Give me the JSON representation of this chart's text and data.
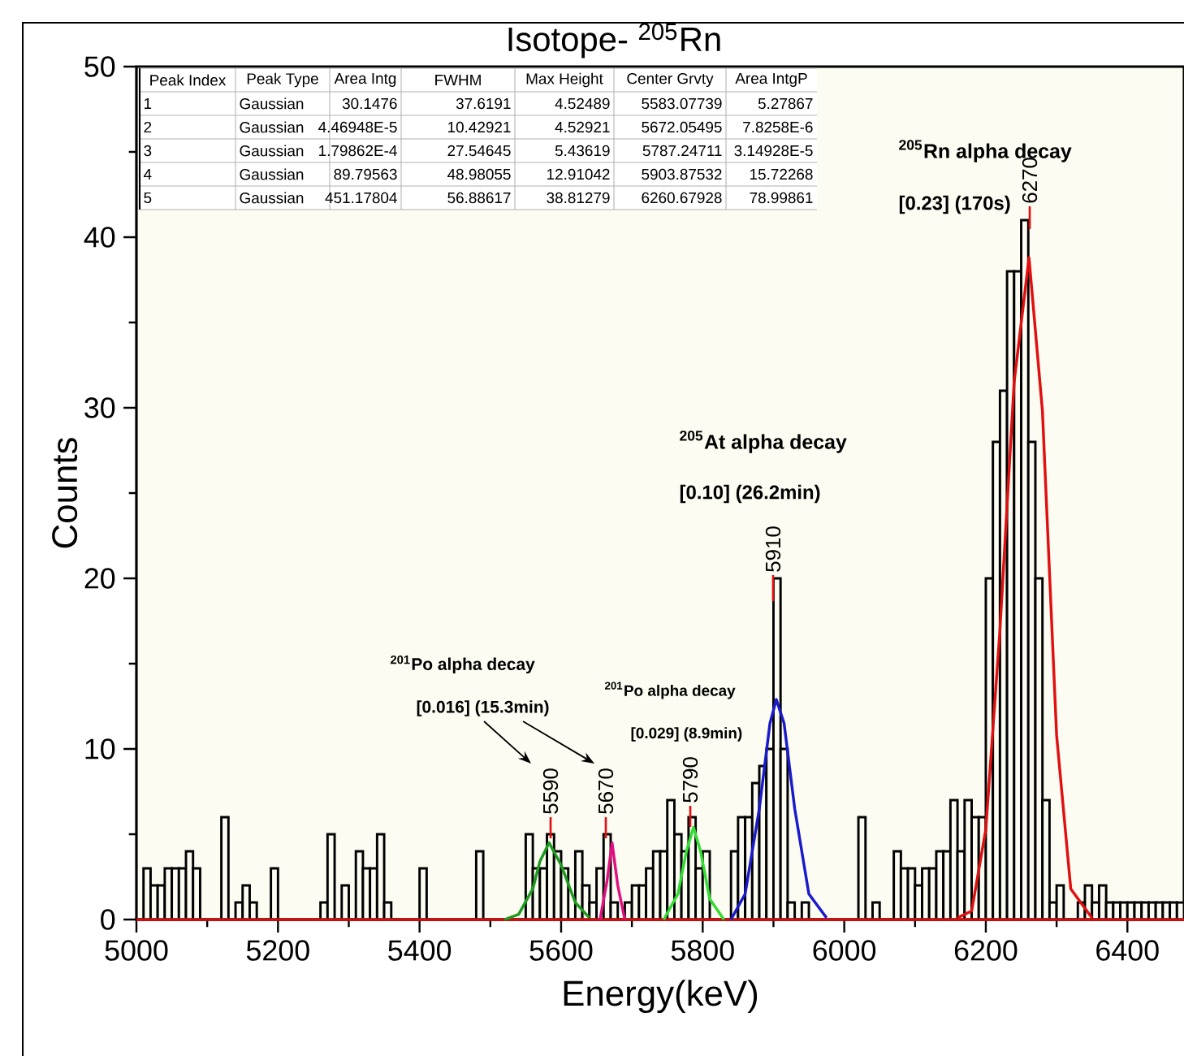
{
  "chart_data": {
    "type": "histogram",
    "title": "Isotope- $^{205}$Rn",
    "xlabel": "Energy(keV)",
    "ylabel": "Counts",
    "color": "#000000",
    "bins": [
      5000,
      5010,
      5020,
      5030,
      5040,
      5050,
      5060,
      5070,
      5080,
      5090,
      5100,
      5110,
      5120,
      5130,
      5140,
      5150,
      5160,
      5170,
      5180,
      5190,
      5200,
      5210,
      5220,
      5230,
      5240,
      5250,
      5260,
      5270,
      5280,
      5290,
      5300,
      5310,
      5320,
      5330,
      5340,
      5350,
      5360,
      5370,
      5380,
      5390,
      5400,
      5410,
      5420,
      5430,
      5440,
      5450,
      5460,
      5470,
      5480,
      5490,
      5500,
      5510,
      5520,
      5530,
      5540,
      5550,
      5560,
      5570,
      5580,
      5590,
      5600,
      5610,
      5620,
      5630,
      5640,
      5650,
      5660,
      5670,
      5680,
      5690,
      5700,
      5710,
      5720,
      5730,
      5740,
      5750,
      5760,
      5770,
      5780,
      5790,
      5800,
      5810,
      5820,
      5830,
      5840,
      5850,
      5860,
      5870,
      5880,
      5890,
      5900,
      5910,
      5920,
      5930,
      5940,
      5950,
      5960,
      5970,
      5980,
      5990,
      6000,
      6010,
      6020,
      6030,
      6040,
      6050,
      6060,
      6070,
      6080,
      6090,
      6100,
      6110,
      6120,
      6130,
      6140,
      6150,
      6160,
      6170,
      6180,
      6190,
      6200,
      6210,
      6220,
      6230,
      6240,
      6250,
      6260,
      6270,
      6280,
      6290,
      6300,
      6310,
      6320,
      6330,
      6340,
      6350,
      6360,
      6370,
      6380,
      6390,
      6400,
      6410,
      6420,
      6430,
      6440,
      6450,
      6460,
      6470,
      6480
    ],
    "values": [
      0,
      3,
      2,
      2,
      3,
      3,
      3,
      4,
      3,
      0,
      0,
      0,
      6,
      0,
      1,
      2,
      1,
      0,
      0,
      3,
      0,
      0,
      0,
      0,
      0,
      0,
      1,
      5,
      0,
      2,
      0,
      4,
      3,
      3,
      5,
      1,
      0,
      0,
      0,
      0,
      3,
      0,
      0,
      0,
      0,
      0,
      0,
      0,
      4,
      0,
      0,
      0,
      0,
      0,
      0,
      5,
      3,
      3,
      5,
      4,
      3,
      0,
      4,
      2,
      1,
      3,
      5,
      1,
      0,
      1,
      2,
      2,
      3,
      4,
      4,
      7,
      5,
      4,
      6,
      3,
      4,
      0,
      0,
      0,
      4,
      6,
      6,
      8,
      9,
      10,
      20,
      10,
      1,
      0,
      1,
      0,
      0,
      0,
      0,
      0,
      0,
      0,
      6,
      0,
      1,
      0,
      0,
      4,
      3,
      3,
      2,
      3,
      3,
      4,
      4,
      7,
      4,
      7,
      6,
      6,
      20,
      28,
      31,
      38,
      38,
      41,
      28,
      20,
      7,
      1,
      2,
      0,
      0,
      1,
      2,
      1,
      2,
      1,
      1,
      1,
      1,
      1,
      1,
      1,
      1,
      1,
      1,
      1
    ],
    "series": [
      {
        "type": "line",
        "color": "#d01010",
        "x": [
          5000,
          6480
        ],
        "values": [
          0,
          0
        ]
      },
      {
        "type": "line",
        "color": "#1e9a1e",
        "x": [
          5520,
          5540,
          5560,
          5570,
          5583,
          5600,
          5620,
          5640
        ],
        "values": [
          0,
          0.3,
          1.8,
          3.4,
          4.5,
          3.2,
          1,
          0.1
        ]
      },
      {
        "type": "line",
        "color": "#e0107f",
        "x": [
          5655,
          5665,
          5672,
          5680,
          5690
        ],
        "values": [
          0,
          2.3,
          4.5,
          2,
          0
        ]
      },
      {
        "type": "line",
        "color": "#33dd33",
        "x": [
          5745,
          5765,
          5777,
          5787,
          5797,
          5810,
          5830
        ],
        "values": [
          0,
          1.5,
          4,
          5.4,
          4,
          1.2,
          0
        ]
      },
      {
        "type": "line",
        "color": "#1a1acc",
        "x": [
          5840,
          5860,
          5880,
          5895,
          5904,
          5915,
          5930,
          5950,
          5975
        ],
        "values": [
          0,
          1.5,
          6.5,
          11.5,
          12.9,
          11.5,
          6.5,
          1.5,
          0.1
        ]
      },
      {
        "type": "line",
        "color": "#e01010",
        "x": [
          6160,
          6180,
          6200,
          6220,
          6240,
          6261,
          6280,
          6300,
          6320,
          6350
        ],
        "values": [
          0.1,
          0.5,
          5.3,
          17,
          31.5,
          38.8,
          29.8,
          10.8,
          1.8,
          0.1
        ]
      }
    ],
    "xlim": [
      5000,
      6480
    ],
    "ylim": [
      0,
      50
    ],
    "xticks": [
      5000,
      5200,
      5400,
      5600,
      5800,
      6000,
      6200,
      6400
    ],
    "yticks": [
      0,
      10,
      20,
      30,
      40,
      50
    ],
    "annotations": [
      "$^{205}$Rn alpha decay",
      "[0.23] (170s)",
      "$^{205}$At alpha decay",
      "[0.10] (26.2min)",
      "$^{201}$Po alpha decay",
      "[0.016]  (15.3min)",
      "$^{201}$Po alpha decay",
      "[0.029] (8.9min)",
      "Peak Index",
      "Peak Type",
      "Area Intg",
      "FWHM",
      "Max Height",
      "Center Grvty",
      "Area IntgP",
      "1",
      "Gaussian",
      "30.1476",
      "37.6191",
      "4.52489",
      "5583.07739",
      "5.27867",
      "2",
      "Gaussian",
      "4.46948E-5",
      "10.42921",
      "4.52921",
      "5672.05495",
      "7.8258E-6",
      "3",
      "Gaussian",
      "1.79862E-4",
      "27.54645",
      "5.43619",
      "5787.24711",
      "3.14928E-5",
      "4",
      "Gaussian",
      "89.79563",
      "48.98055",
      "12.91042",
      "5903.87532",
      "15.72268",
      "5",
      "Gaussian",
      "451.17804",
      "56.88617",
      "38.81279",
      "6260.67928",
      "78.99861",
      "5590",
      "5670",
      "5790",
      "5910",
      "6270"
    ]
  }
}
